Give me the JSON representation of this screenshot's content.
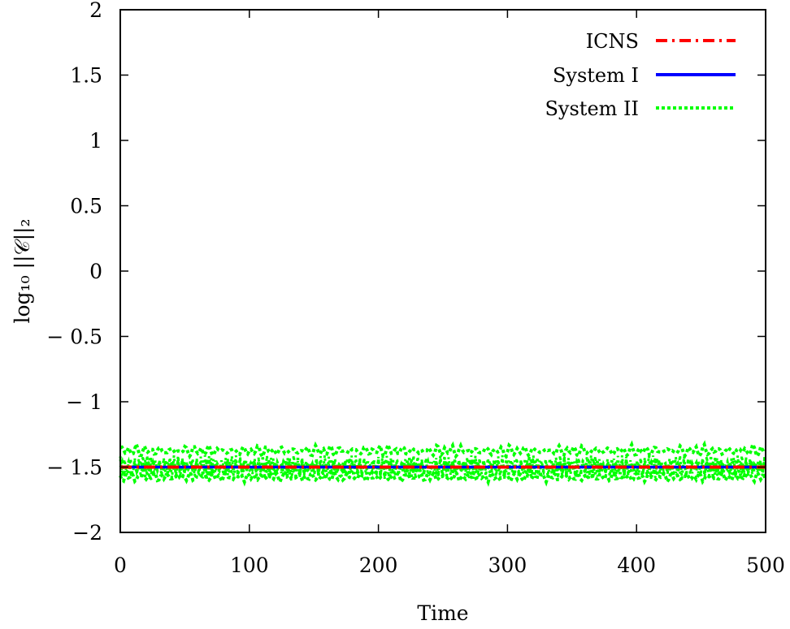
{
  "chart_data": {
    "type": "line",
    "xlabel": "Time",
    "ylabel": "log₁₀ ||𝒞||₂",
    "xlim": [
      0,
      500
    ],
    "ylim": [
      -2,
      2
    ],
    "x_ticks": [
      0,
      100,
      200,
      300,
      400,
      500
    ],
    "x_tick_labels": [
      "0",
      "100",
      "200",
      "300",
      "400",
      "500"
    ],
    "y_ticks": [
      2,
      1.5,
      1,
      0.5,
      0,
      -0.5,
      -1,
      -1.5,
      -2
    ],
    "y_tick_labels": [
      "2",
      "1.5",
      "1",
      "0.5",
      "0",
      "− 0.5",
      "− 1",
      "− 1.5",
      "−2"
    ],
    "grid": false,
    "legend_position": "top-right",
    "series": [
      {
        "name": "ICNS",
        "color": "#ff0000",
        "style": "dash-dot",
        "x": [
          0,
          100,
          200,
          300,
          400,
          500
        ],
        "y": [
          -1.5,
          -1.5,
          -1.5,
          -1.5,
          -1.5,
          -1.5
        ]
      },
      {
        "name": "System I",
        "color": "#0000ff",
        "style": "solid",
        "x": [
          0,
          100,
          200,
          300,
          400,
          500
        ],
        "y": [
          -1.5,
          -1.5,
          -1.5,
          -1.5,
          -1.5,
          -1.5
        ]
      },
      {
        "name": "System II",
        "color": "#00ff00",
        "style": "dotted",
        "oscillation_range": [
          -1.62,
          -1.32
        ],
        "x": [
          0,
          100,
          200,
          300,
          400,
          500
        ],
        "y": [
          -1.5,
          -1.5,
          -1.5,
          -1.5,
          -1.5,
          -1.5
        ]
      }
    ]
  }
}
